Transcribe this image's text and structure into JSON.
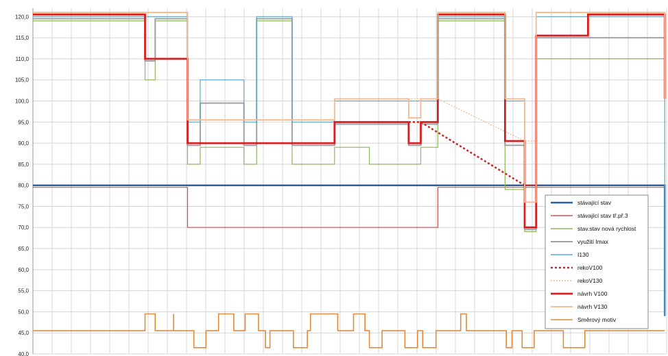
{
  "chart_data": {
    "type": "line",
    "title": "",
    "xlabel": "",
    "ylabel": "",
    "ylim": [
      40,
      122
    ],
    "yticks": [
      "40,0",
      "45,0",
      "50,0",
      "55,0",
      "60,0",
      "65,0",
      "70,0",
      "75,0",
      "80,0",
      "85,0",
      "90,0",
      "95,0",
      "100,0",
      "105,0",
      "110,0",
      "115,0",
      "120,0"
    ],
    "ytick_values": [
      40,
      45,
      50,
      55,
      60,
      65,
      70,
      75,
      80,
      85,
      90,
      95,
      100,
      105,
      110,
      115,
      120
    ],
    "xlim": [
      0,
      100
    ],
    "xgrid_count": 33,
    "grid": true,
    "legend_position": "bottom-right",
    "series": [
      {
        "name": "stávající stav",
        "color": "#2e5d9b",
        "width": 2.5,
        "dash": "",
        "points": [
          [
            0,
            80
          ],
          [
            99.7,
            80
          ],
          [
            99.7,
            49
          ]
        ]
      },
      {
        "name": "stávající stav tř.př.3",
        "color": "#b85a5a",
        "width": 1.2,
        "dash": "",
        "points": [
          [
            0,
            79.5
          ],
          [
            24.4,
            79.5
          ],
          [
            24.4,
            70
          ],
          [
            63.9,
            70
          ],
          [
            63.9,
            79.5
          ],
          [
            99.7,
            79.5
          ]
        ]
      },
      {
        "name": "stav.stav nová rychlost",
        "color": "#8fb65a",
        "width": 1.2,
        "dash": "",
        "points": [
          [
            0,
            119
          ],
          [
            17.7,
            119
          ],
          [
            17.7,
            105
          ],
          [
            19.3,
            105
          ],
          [
            19.3,
            119
          ],
          [
            24.4,
            119
          ],
          [
            24.4,
            85
          ],
          [
            26.4,
            85
          ],
          [
            26.4,
            89
          ],
          [
            33.3,
            89
          ],
          [
            33.3,
            85
          ],
          [
            35.3,
            85
          ],
          [
            35.3,
            119
          ],
          [
            40.9,
            119
          ],
          [
            40.9,
            85
          ],
          [
            47.6,
            85
          ],
          [
            47.6,
            89
          ],
          [
            53.1,
            89
          ],
          [
            53.1,
            85
          ],
          [
            61.2,
            85
          ],
          [
            61.2,
            89
          ],
          [
            63.9,
            89
          ],
          [
            63.9,
            119
          ],
          [
            74.5,
            119
          ],
          [
            74.5,
            79
          ],
          [
            77.6,
            79
          ],
          [
            77.6,
            69
          ],
          [
            79.4,
            69
          ],
          [
            79.4,
            110
          ],
          [
            99.7,
            110
          ]
        ]
      },
      {
        "name": "využití Imax",
        "color": "#a0a0a8",
        "width": 2,
        "dash": "",
        "points": [
          [
            0,
            119.5
          ],
          [
            17.7,
            119.5
          ],
          [
            17.7,
            109.5
          ],
          [
            19.3,
            109.5
          ],
          [
            19.3,
            119.5
          ],
          [
            24.4,
            119.5
          ],
          [
            24.4,
            89.5
          ],
          [
            26.4,
            89.5
          ],
          [
            26.4,
            99.5
          ],
          [
            33.3,
            99.5
          ],
          [
            33.3,
            89.5
          ],
          [
            35.3,
            89.5
          ],
          [
            35.3,
            119.5
          ],
          [
            40.9,
            119.5
          ],
          [
            40.9,
            89.5
          ],
          [
            47.6,
            89.5
          ],
          [
            47.6,
            94.5
          ],
          [
            59.3,
            94.5
          ],
          [
            59.3,
            89.5
          ],
          [
            61.2,
            89.5
          ],
          [
            61.2,
            94.5
          ],
          [
            63.9,
            94.5
          ],
          [
            63.9,
            119.5
          ],
          [
            74.5,
            119.5
          ],
          [
            74.5,
            89.5
          ],
          [
            77.6,
            89.5
          ],
          [
            77.6,
            69.5
          ],
          [
            79.4,
            69.5
          ],
          [
            79.4,
            115
          ],
          [
            99.7,
            115
          ]
        ]
      },
      {
        "name": "I130",
        "color": "#5aa8cc",
        "width": 1.2,
        "dash": "",
        "points": [
          [
            0,
            120
          ],
          [
            24.4,
            120
          ],
          [
            24.4,
            95
          ],
          [
            26.4,
            95
          ],
          [
            26.4,
            105
          ],
          [
            33.3,
            105
          ],
          [
            33.3,
            95
          ],
          [
            35.3,
            95
          ],
          [
            35.3,
            120
          ],
          [
            40.9,
            120
          ],
          [
            40.9,
            95
          ],
          [
            47.6,
            95
          ],
          [
            47.6,
            100
          ],
          [
            63.9,
            100
          ],
          [
            63.9,
            120
          ],
          [
            74.5,
            120
          ],
          [
            74.5,
            100
          ],
          [
            77.6,
            100
          ],
          [
            77.6,
            76
          ],
          [
            79.4,
            76
          ],
          [
            79.4,
            120
          ],
          [
            99.7,
            120
          ],
          [
            99.7,
            49
          ]
        ]
      },
      {
        "name": "rekoV100",
        "color": "#d42020",
        "width": 2.5,
        "dash": "3,3",
        "points": [
          [
            59.3,
            95
          ],
          [
            61.2,
            95
          ],
          [
            77.6,
            80
          ],
          [
            79.4,
            80
          ]
        ]
      },
      {
        "name": "rekoV130",
        "color": "#f6b88a",
        "width": 1.2,
        "dash": "2,2",
        "points": [
          [
            59.3,
            100.5
          ],
          [
            63.9,
            100.5
          ],
          [
            77.6,
            90.5
          ],
          [
            79.4,
            90.5
          ]
        ]
      },
      {
        "name": "návrh V100",
        "color": "#d42020",
        "width": 2.8,
        "dash": "",
        "points": [
          [
            0,
            120.5
          ],
          [
            17.7,
            120.5
          ],
          [
            17.7,
            110
          ],
          [
            24.4,
            110
          ],
          [
            24.4,
            90
          ],
          [
            47.6,
            90
          ],
          [
            47.6,
            95
          ],
          [
            59.3,
            95
          ],
          [
            59.3,
            90
          ],
          [
            61.2,
            90
          ],
          [
            61.2,
            95
          ],
          [
            63.9,
            95
          ],
          [
            63.9,
            120.5
          ],
          [
            74.5,
            120.5
          ],
          [
            74.5,
            90.5
          ],
          [
            77.6,
            90.5
          ],
          [
            77.6,
            70
          ],
          [
            79.4,
            70
          ],
          [
            79.4,
            115.5
          ],
          [
            87.6,
            115.5
          ],
          [
            87.6,
            120.5
          ],
          [
            99.7,
            120.5
          ],
          [
            99.7,
            100.5
          ]
        ]
      },
      {
        "name": "návrh V130",
        "color": "#f6b88a",
        "width": 1.8,
        "dash": "",
        "points": [
          [
            0,
            121
          ],
          [
            24.4,
            121
          ],
          [
            24.4,
            95.5
          ],
          [
            47.6,
            95.5
          ],
          [
            47.6,
            100.5
          ],
          [
            59.3,
            100.5
          ],
          [
            59.3,
            96
          ],
          [
            61.2,
            96
          ],
          [
            61.2,
            100.5
          ],
          [
            63.9,
            100.5
          ],
          [
            63.9,
            121
          ],
          [
            74.5,
            121
          ],
          [
            74.5,
            100.5
          ],
          [
            77.6,
            100.5
          ],
          [
            77.6,
            76
          ],
          [
            79.4,
            76
          ],
          [
            79.4,
            121
          ],
          [
            99.7,
            121
          ],
          [
            99.7,
            100.5
          ]
        ]
      },
      {
        "name": "Směrový motiv",
        "color": "#e08a3a",
        "width": 1.6,
        "dash": "",
        "points": [
          [
            0,
            45.5
          ],
          [
            17.7,
            45.5
          ],
          [
            17.7,
            49.5
          ],
          [
            19.3,
            49.5
          ],
          [
            19.3,
            45.5
          ],
          [
            22.2,
            45.5
          ],
          [
            22.2,
            49.5
          ],
          [
            22.2,
            45.5
          ],
          [
            25.4,
            45.5
          ],
          [
            25.4,
            41.5
          ],
          [
            27.3,
            41.5
          ],
          [
            27.3,
            45.5
          ],
          [
            29.3,
            45.5
          ],
          [
            29.3,
            49.5
          ],
          [
            31.7,
            49.5
          ],
          [
            31.7,
            45.5
          ],
          [
            33.5,
            45.5
          ],
          [
            33.5,
            49.5
          ],
          [
            35.6,
            49.5
          ],
          [
            35.6,
            45.5
          ],
          [
            36.7,
            45.5
          ],
          [
            36.7,
            41.5
          ],
          [
            37.4,
            41.5
          ],
          [
            37.4,
            45.5
          ],
          [
            41.1,
            45.5
          ],
          [
            41.1,
            41.5
          ],
          [
            43.3,
            41.5
          ],
          [
            43.3,
            45.5
          ],
          [
            43.8,
            45.5
          ],
          [
            43.8,
            49.5
          ],
          [
            48.1,
            49.5
          ],
          [
            48.1,
            45.5
          ],
          [
            50.6,
            45.5
          ],
          [
            50.6,
            49.5
          ],
          [
            52.4,
            49.5
          ],
          [
            52.4,
            45.5
          ],
          [
            53.1,
            45.5
          ],
          [
            53.1,
            41.5
          ],
          [
            55.1,
            41.5
          ],
          [
            55.1,
            45.5
          ],
          [
            58.7,
            45.5
          ],
          [
            58.7,
            41.5
          ],
          [
            60.7,
            41.5
          ],
          [
            60.7,
            45.5
          ],
          [
            61.5,
            45.5
          ],
          [
            61.5,
            41.5
          ],
          [
            63.6,
            41.5
          ],
          [
            63.6,
            45.5
          ],
          [
            67.5,
            45.5
          ],
          [
            67.5,
            49.5
          ],
          [
            68.4,
            49.5
          ],
          [
            68.4,
            45.5
          ],
          [
            74.7,
            45.5
          ],
          [
            74.7,
            41.5
          ],
          [
            75.6,
            41.5
          ],
          [
            75.6,
            45.5
          ],
          [
            77.2,
            45.5
          ],
          [
            77.2,
            41.5
          ],
          [
            79.1,
            41.5
          ],
          [
            79.1,
            45.5
          ],
          [
            83.7,
            45.5
          ],
          [
            83.7,
            41.5
          ],
          [
            87.1,
            41.5
          ],
          [
            87.1,
            45.5
          ],
          [
            99.7,
            45.5
          ]
        ]
      }
    ]
  }
}
